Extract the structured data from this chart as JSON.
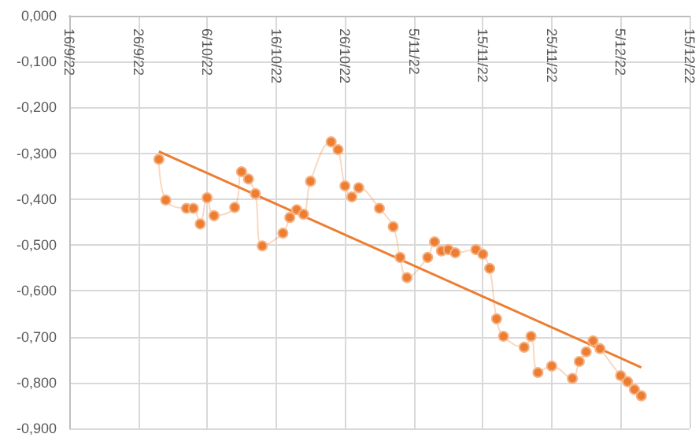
{
  "chart_data": {
    "type": "line",
    "x": [
      "--09-29",
      "--09-30",
      "--10-03",
      "--10-04",
      "--10-05",
      "--10-06",
      "--10-07",
      "--10-10",
      "--10-11",
      "--10-12",
      "--10-13",
      "--10-14",
      "--10-17",
      "--10-18",
      "--10-19",
      "--10-20",
      "--10-21",
      "--10-24",
      "--10-25",
      "--10-26",
      "--10-27",
      "--10-28",
      "--10-31",
      "--11-02",
      "--11-03",
      "--11-04",
      "--11-07",
      "--11-08",
      "--11-09",
      "--11-10",
      "--11-11",
      "--11-14",
      "--11-15",
      "--11-16",
      "--11-17",
      "--11-18",
      "--11-21",
      "--11-22",
      "--11-23",
      "--11-25",
      "--11-28",
      "--11-29",
      "--11-30",
      "--12-01",
      "--12-02",
      "--12-05",
      "--12-06",
      "--12-07",
      "--12-08"
    ],
    "series": [
      {
        "color": "#ed7d31",
        "values": [
          -0.313,
          -0.402,
          -0.42,
          -0.42,
          -0.454,
          -0.397,
          -0.436,
          -0.418,
          -0.34,
          -0.356,
          -0.388,
          -0.502,
          -0.474,
          -0.44,
          -0.423,
          -0.433,
          -0.361,
          -0.275,
          -0.292,
          -0.371,
          -0.395,
          -0.375,
          -0.42,
          -0.46,
          -0.527,
          -0.571,
          -0.527,
          -0.493,
          -0.513,
          -0.51,
          -0.517,
          -0.51,
          -0.52,
          -0.551,
          -0.661,
          -0.699,
          -0.723,
          -0.699,
          -0.778,
          -0.764,
          -0.791,
          -0.754,
          -0.733,
          -0.709,
          -0.726,
          -0.785,
          -0.798,
          -0.815,
          -0.829
        ]
      },
      {
        "type": "line",
        "color": "#ed7d31",
        "marker": "none",
        "x": [
          "--09-29",
          "--12-08"
        ],
        "values": [
          -0.296,
          -0.767
        ]
      }
    ],
    "xlim": [
      "--09-16",
      "--12-15"
    ],
    "xticks": [
      {
        "value": "--09-16",
        "label": "16/9/22"
      },
      {
        "value": "--09-26",
        "label": "26/9/22"
      },
      {
        "value": "--10-06",
        "label": "6/10/22"
      },
      {
        "value": "--10-16",
        "label": "16/10/22"
      },
      {
        "value": "--10-26",
        "label": "26/10/22"
      },
      {
        "value": "--11-05",
        "label": "5/11/22"
      },
      {
        "value": "--11-15",
        "label": "15/11/22"
      },
      {
        "value": "--11-25",
        "label": "25/11/22"
      },
      {
        "value": "--12-05",
        "label": "5/12/22"
      },
      {
        "value": "--12-15",
        "label": "15/12/22"
      }
    ],
    "ylim": [
      -0.9,
      0
    ],
    "yticks": [
      {
        "value": 0,
        "label": "0,000"
      },
      {
        "value": -0.1,
        "label": "-0,100"
      },
      {
        "value": -0.2,
        "label": "-0,200"
      },
      {
        "value": -0.3,
        "label": "-0,300"
      },
      {
        "value": -0.4,
        "label": "-0,400"
      },
      {
        "value": -0.5,
        "label": "-0,500"
      },
      {
        "value": -0.6,
        "label": "-0,600"
      },
      {
        "value": -0.7,
        "label": "-0,700"
      },
      {
        "value": -0.8,
        "label": "-0,800"
      },
      {
        "value": -0.9,
        "label": "-0,900"
      }
    ],
    "grid": true,
    "marker": "circle"
  }
}
